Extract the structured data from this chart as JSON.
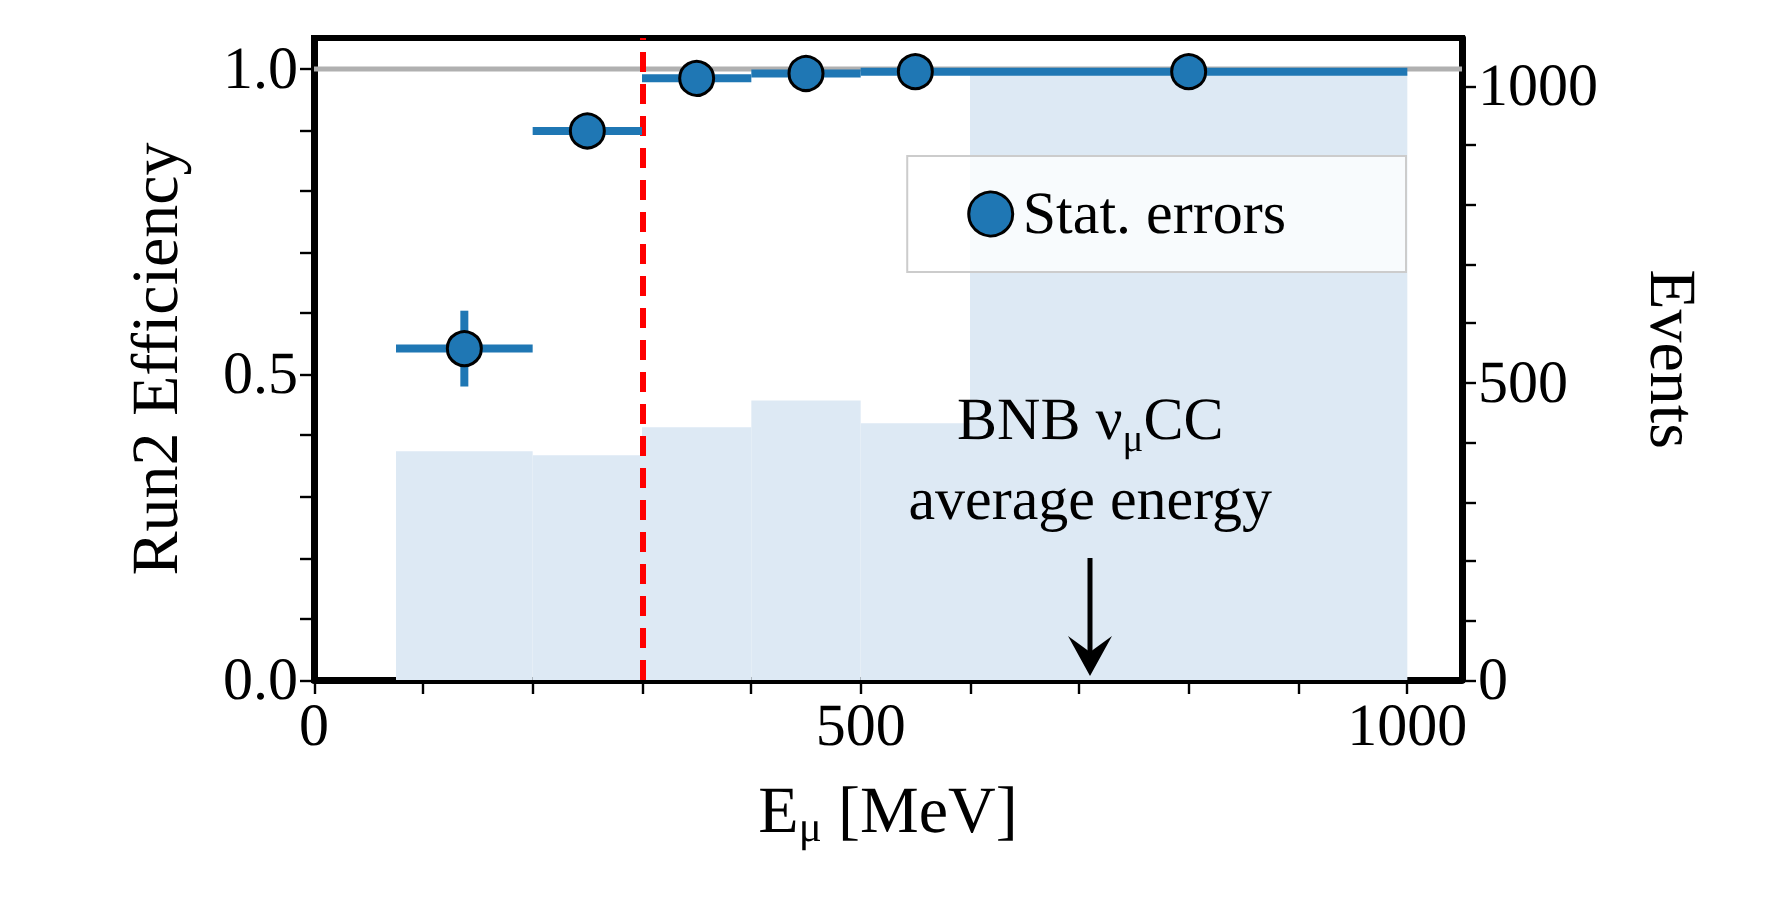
{
  "chart_data": {
    "type": "scatter",
    "xlabel": "E$_{μ}$ [MeV]",
    "ylabel": "Run2 Efficiency",
    "y2label": "Events",
    "xlim": [
      0,
      1050
    ],
    "xticks": [
      0,
      {
        "value": 100,
        "label": null
      },
      {
        "value": 200,
        "label": null
      },
      {
        "value": 300,
        "label": null
      },
      {
        "value": 400,
        "label": null
      },
      500,
      {
        "value": 600,
        "label": null
      },
      {
        "value": 700,
        "label": null
      },
      {
        "value": 800,
        "label": null
      },
      {
        "value": 900,
        "label": null
      },
      1000
    ],
    "ylim": [
      0,
      1.05
    ],
    "yticks": [
      {
        "value": 0,
        "label": "0.0"
      },
      {
        "value": 0.1,
        "label": null
      },
      {
        "value": 0.2,
        "label": null
      },
      {
        "value": 0.3,
        "label": null
      },
      {
        "value": 0.4,
        "label": null
      },
      {
        "value": 0.5,
        "label": "0.5"
      },
      {
        "value": 0.6,
        "label": null
      },
      {
        "value": 0.7,
        "label": null
      },
      {
        "value": 0.8,
        "label": null
      },
      {
        "value": 0.9,
        "label": null
      },
      {
        "value": 1,
        "label": "1.0"
      }
    ],
    "y2lim": [
      0,
      1080
    ],
    "y2ticks": [
      0,
      {
        "value": 100,
        "label": null
      },
      {
        "value": 200,
        "label": null
      },
      {
        "value": 300,
        "label": null
      },
      {
        "value": 400,
        "label": null
      },
      500,
      {
        "value": 600,
        "label": null
      },
      {
        "value": 700,
        "label": null
      },
      {
        "value": 800,
        "label": null
      },
      {
        "value": 900,
        "label": null
      },
      1000
    ],
    "series": [
      {
        "type": "histogram",
        "axis": "y2",
        "color": "#dde9f4",
        "bins": [
          75,
          200,
          300,
          400,
          500,
          600,
          1000
        ],
        "values": [
          385,
          378,
          425,
          470,
          432,
          1020
        ]
      },
      {
        "name": "Stat. errors",
        "color": "#1f77b4",
        "x": [
          137.5,
          250,
          350,
          450,
          550,
          800
        ],
        "values": [
          0.542,
          0.898,
          0.984,
          0.992,
          0.995,
          0.995
        ],
        "errors": [
          0.062,
          null,
          null,
          null,
          null,
          null
        ],
        "xerrors": [
          62.5,
          50,
          50,
          50,
          50,
          200
        ]
      }
    ],
    "ref_lines": [
      {
        "axis": "y",
        "value": 1,
        "color": "#b0b0b0",
        "line_style": "solid"
      },
      {
        "axis": "x",
        "value": 300,
        "color": "#ff0000",
        "line_style": "dashed"
      }
    ],
    "annotations": [
      {
        "text": "BNB ν$_{μ}$CC\naverage energy",
        "x": 710,
        "y": 0
      }
    ],
    "legend": "top right",
    "marker": "circle",
    "grid": false
  }
}
